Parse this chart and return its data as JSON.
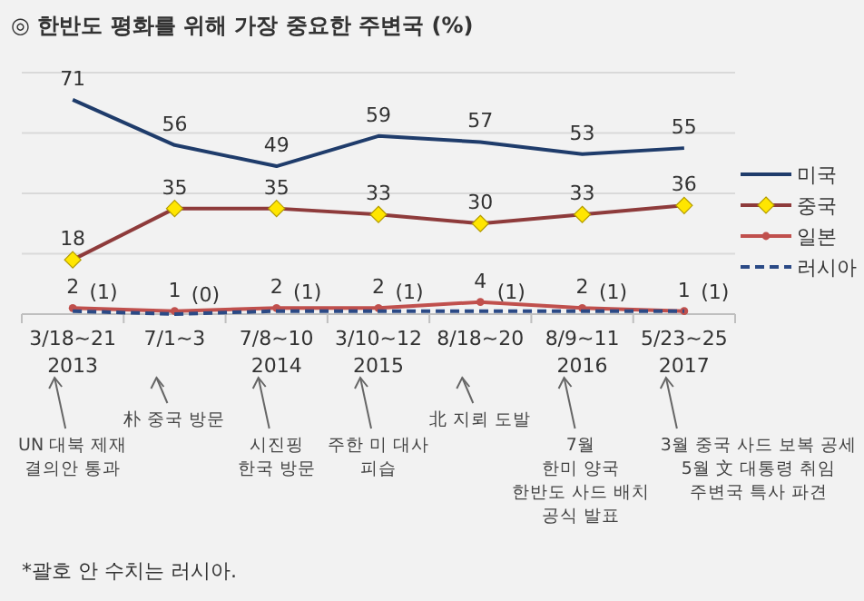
{
  "chart_data": {
    "type": "line",
    "title": "◎ 한반도 평화를 위해 가장 중요한 주변국 (%)",
    "categories": [
      "3/18~21\n2013",
      "7/1~3",
      "7/8~10\n2014",
      "3/10~12\n2015",
      "8/18~20",
      "8/9~11\n2016",
      "5/23~25\n2017"
    ],
    "series": [
      {
        "name": "미국",
        "color": "#1f3c6b",
        "values": [
          71,
          56,
          49,
          59,
          57,
          53,
          55
        ]
      },
      {
        "name": "중국",
        "color": "#8e3b3b",
        "marker": "diamond",
        "values": [
          18,
          35,
          35,
          33,
          30,
          33,
          36
        ]
      },
      {
        "name": "일본",
        "color": "#c0504d",
        "marker": "circle",
        "values": [
          2,
          1,
          2,
          2,
          4,
          2,
          1
        ]
      },
      {
        "name": "러시아",
        "color": "#2b4a86",
        "line_style": "dashed",
        "values": [
          1,
          0,
          1,
          1,
          1,
          1,
          1
        ],
        "value_labels": [
          "(1)",
          "(0)",
          "(1)",
          "(1)",
          "(1)",
          "(1)",
          "(1)"
        ]
      }
    ],
    "ylim": [
      0,
      80
    ],
    "yticks": [
      {
        "value": 0,
        "label": null
      },
      {
        "value": 20,
        "label": null
      },
      {
        "value": 40,
        "label": null
      },
      {
        "value": 60,
        "label": null
      },
      {
        "value": 80,
        "label": null
      }
    ],
    "tick_labels": "x",
    "grid": "y",
    "legend": "right",
    "data_labels": true,
    "annotations": [
      "UN 대북 제재\n결의안 통과",
      "朴 중국 방문",
      "시진핑\n한국 방문",
      "주한 미 대사\n피습",
      "北 지뢰 도발",
      "7월\n한미 양국\n한반도 사드 배치\n공식 발표",
      "3월 중국 사드 보복 공세\n5월 文 대통령 취임\n주변국 특사 파견",
      "*괄호 안 수치는 러시아."
    ]
  }
}
